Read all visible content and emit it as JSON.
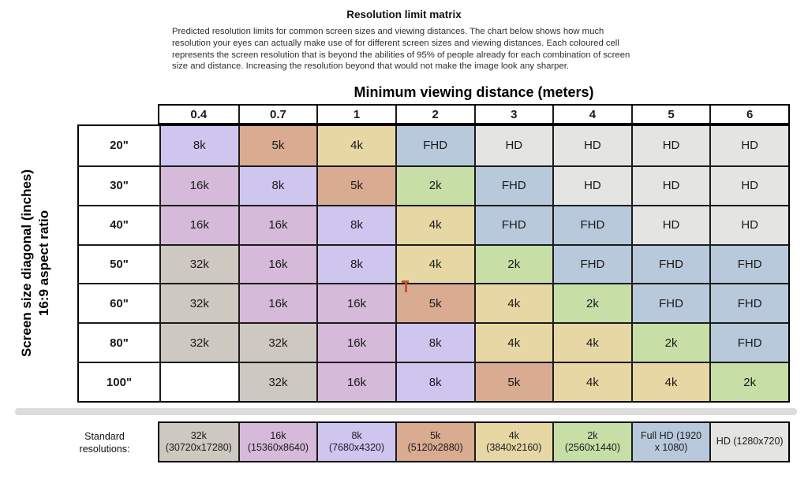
{
  "page": {
    "title": "Resolution limit matrix",
    "description_lines": [
      "Predicted resolution limits for common screen sizes and viewing distances. The chart below shows how much",
      "resolution your eyes can actually make use of for different screen sizes and viewing distances. Each coloured cell",
      "represents the screen resolution that is beyond the abilities of 95% of people already for each combination of screen",
      "size and distance. Increasing the resolution beyond that would not make the image look any sharper."
    ]
  },
  "matrix": {
    "axis_title": "Minimum viewing distance (meters)",
    "y_axis_label_line1": "Screen size diagonal (inches)",
    "y_axis_label_line2": "16:9 aspect ratio",
    "column_headers": [
      "0.4",
      "0.7",
      "1",
      "2",
      "3",
      "4",
      "5",
      "6"
    ],
    "rows": [
      {
        "label": "20\"",
        "cells": [
          "8k",
          "5k",
          "4k",
          "FHD",
          "HD",
          "HD",
          "HD",
          "HD"
        ]
      },
      {
        "label": "30\"",
        "cells": [
          "16k",
          "8k",
          "5k",
          "2k",
          "FHD",
          "HD",
          "HD",
          "HD"
        ]
      },
      {
        "label": "40\"",
        "cells": [
          "16k",
          "16k",
          "8k",
          "4k",
          "FHD",
          "FHD",
          "HD",
          "HD"
        ]
      },
      {
        "label": "50\"",
        "cells": [
          "32k",
          "16k",
          "8k",
          "4k",
          "2k",
          "FHD",
          "FHD",
          "FHD"
        ]
      },
      {
        "label": "60\"",
        "cells": [
          "32k",
          "16k",
          "16k",
          "5k",
          "4k",
          "2k",
          "FHD",
          "FHD"
        ]
      },
      {
        "label": "80\"",
        "cells": [
          "32k",
          "32k",
          "16k",
          "8k",
          "4k",
          "4k",
          "2k",
          "FHD"
        ]
      },
      {
        "label": "100\"",
        "cells": [
          "",
          "32k",
          "16k",
          "8k",
          "5k",
          "4k",
          "4k",
          "2k"
        ]
      }
    ]
  },
  "legend": {
    "label_line1": "Standard",
    "label_line2": "resolutions:",
    "items": [
      {
        "key": "32k",
        "lines": [
          "32k",
          "(30720x17280)"
        ]
      },
      {
        "key": "16k",
        "lines": [
          "16k",
          "(15360x8640)"
        ]
      },
      {
        "key": "8k",
        "lines": [
          "8k",
          "(7680x4320)"
        ]
      },
      {
        "key": "5k",
        "lines": [
          "5k",
          "(5120x2880)"
        ]
      },
      {
        "key": "4k",
        "lines": [
          "4k",
          "(3840x2160)"
        ]
      },
      {
        "key": "2k",
        "lines": [
          "2k",
          "(2560x1440)"
        ]
      },
      {
        "key": "FHD",
        "lines": [
          "Full HD (1920",
          "x 1080)"
        ]
      },
      {
        "key": "HD",
        "lines": [
          "HD (1280x720)"
        ]
      }
    ]
  },
  "colors": {
    "32k": "#cdc9c1",
    "16k": "#d6bad9",
    "8k": "#cfc6f0",
    "5k": "#d9ab91",
    "4k": "#e7d7a4",
    "2k": "#c7dea6",
    "FHD": "#b8c9dc",
    "HD": "#e4e4e3",
    "empty": "#ffffff"
  },
  "chart_data": {
    "type": "heatmap",
    "title": "Resolution limit matrix",
    "xlabel": "Minimum viewing distance (meters)",
    "ylabel": "Screen size diagonal (inches), 16:9 aspect ratio",
    "x": [
      "0.4",
      "0.7",
      "1",
      "2",
      "3",
      "4",
      "5",
      "6"
    ],
    "y": [
      "20\"",
      "30\"",
      "40\"",
      "50\"",
      "60\"",
      "80\"",
      "100\""
    ],
    "values": [
      [
        "8k",
        "5k",
        "4k",
        "FHD",
        "HD",
        "HD",
        "HD",
        "HD"
      ],
      [
        "16k",
        "8k",
        "5k",
        "2k",
        "FHD",
        "HD",
        "HD",
        "HD"
      ],
      [
        "16k",
        "16k",
        "8k",
        "4k",
        "FHD",
        "FHD",
        "HD",
        "HD"
      ],
      [
        "32k",
        "16k",
        "8k",
        "4k",
        "2k",
        "FHD",
        "FHD",
        "FHD"
      ],
      [
        "32k",
        "16k",
        "16k",
        "5k",
        "4k",
        "2k",
        "FHD",
        "FHD"
      ],
      [
        "32k",
        "32k",
        "16k",
        "8k",
        "4k",
        "4k",
        "2k",
        "FHD"
      ],
      [
        null,
        "32k",
        "16k",
        "8k",
        "5k",
        "4k",
        "4k",
        "2k"
      ]
    ],
    "legend": [
      "32k (30720x17280)",
      "16k (15360x8640)",
      "8k (7680x4320)",
      "5k (5120x2880)",
      "4k (3840x2160)",
      "2k (2560x1440)",
      "Full HD (1920 x 1080)",
      "HD (1280x720)"
    ],
    "legend_position": "bottom",
    "grid": true
  }
}
